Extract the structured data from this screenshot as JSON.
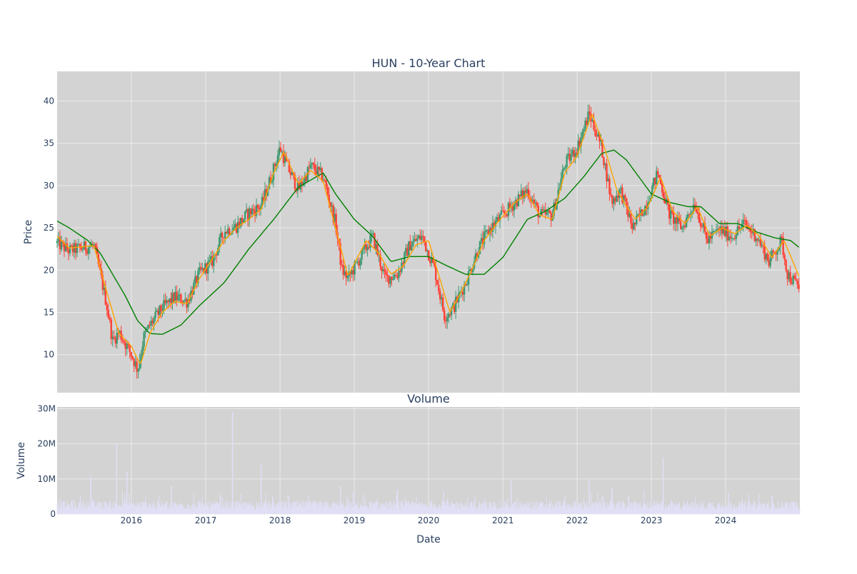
{
  "colors": {
    "plot_bg": "#d3d3d3",
    "grid": "#ebebeb",
    "up": "#3d9970",
    "down": "#ff4136",
    "ma_short": "#ffa500",
    "ma_long": "#008000",
    "volume": "#e0dff5",
    "text": "#2a3f5f"
  },
  "chart_data": [
    {
      "type": "candlestick",
      "title": "HUN - 10-Year Chart",
      "ylabel": "Price",
      "ylim": [
        5.5,
        43.5
      ],
      "yticks": [
        10,
        15,
        20,
        25,
        30,
        35,
        40
      ],
      "xlim": [
        "2015-01-01",
        "2024-12-31"
      ],
      "grid": true,
      "series": [
        {
          "kind": "ohlc",
          "points": [
            [
              "2015-01-01",
              23.2
            ],
            [
              "2015-03-01",
              22.3
            ],
            [
              "2015-05-01",
              22.6
            ],
            [
              "2015-07-01",
              22.9
            ],
            [
              "2015-08-01",
              19.5
            ],
            [
              "2015-09-01",
              16.0
            ],
            [
              "2015-10-01",
              11.6
            ],
            [
              "2015-11-01",
              12.7
            ],
            [
              "2016-01-01",
              10.0
            ],
            [
              "2016-02-01",
              8.2
            ],
            [
              "2016-03-01",
              12.0
            ],
            [
              "2016-04-01",
              13.5
            ],
            [
              "2016-06-01",
              15.5
            ],
            [
              "2016-08-01",
              16.8
            ],
            [
              "2016-10-01",
              16.3
            ],
            [
              "2016-12-01",
              19.6
            ],
            [
              "2017-02-01",
              21.0
            ],
            [
              "2017-04-01",
              24.6
            ],
            [
              "2017-06-01",
              25.2
            ],
            [
              "2017-08-01",
              26.8
            ],
            [
              "2017-10-01",
              27.6
            ],
            [
              "2017-12-01",
              32.0
            ],
            [
              "2018-01-01",
              34.5
            ],
            [
              "2018-02-01",
              32.5
            ],
            [
              "2018-04-01",
              29.5
            ],
            [
              "2018-06-01",
              32.3
            ],
            [
              "2018-08-01",
              31.0
            ],
            [
              "2018-10-01",
              25.5
            ],
            [
              "2018-11-01",
              20.0
            ],
            [
              "2018-12-01",
              19.0
            ],
            [
              "2019-02-01",
              21.5
            ],
            [
              "2019-04-01",
              24.0
            ],
            [
              "2019-06-01",
              19.0
            ],
            [
              "2019-08-01",
              19.5
            ],
            [
              "2019-10-01",
              23.0
            ],
            [
              "2019-12-01",
              24.0
            ],
            [
              "2020-02-01",
              20.0
            ],
            [
              "2020-03-20",
              14.5
            ],
            [
              "2020-05-01",
              15.5
            ],
            [
              "2020-07-01",
              18.5
            ],
            [
              "2020-09-01",
              22.5
            ],
            [
              "2020-11-01",
              25.0
            ],
            [
              "2021-01-01",
              26.5
            ],
            [
              "2021-03-01",
              28.0
            ],
            [
              "2021-05-01",
              29.5
            ],
            [
              "2021-07-01",
              26.5
            ],
            [
              "2021-09-01",
              26.5
            ],
            [
              "2021-11-01",
              32.5
            ],
            [
              "2022-01-01",
              34.5
            ],
            [
              "2022-03-01",
              38.5
            ],
            [
              "2022-05-01",
              34.5
            ],
            [
              "2022-06-20",
              28.0
            ],
            [
              "2022-08-01",
              29.5
            ],
            [
              "2022-10-01",
              25.0
            ],
            [
              "2022-12-01",
              27.5
            ],
            [
              "2023-02-01",
              31.5
            ],
            [
              "2023-04-01",
              26.5
            ],
            [
              "2023-06-01",
              25.0
            ],
            [
              "2023-08-01",
              28.0
            ],
            [
              "2023-10-01",
              23.5
            ],
            [
              "2023-12-01",
              24.8
            ],
            [
              "2024-02-01",
              24.0
            ],
            [
              "2024-04-01",
              25.5
            ],
            [
              "2024-06-01",
              24.0
            ],
            [
              "2024-08-01",
              21.0
            ],
            [
              "2024-10-01",
              23.5
            ],
            [
              "2024-11-01",
              19.5
            ],
            [
              "2024-12-31",
              17.8
            ]
          ]
        },
        {
          "kind": "line",
          "color_key": "ma_short",
          "points": [
            [
              "2015-01-01",
              24.0
            ],
            [
              "2015-03-01",
              22.6
            ],
            [
              "2015-07-01",
              22.9
            ],
            [
              "2015-09-01",
              17.5
            ],
            [
              "2015-11-01",
              12.5
            ],
            [
              "2016-01-01",
              11.0
            ],
            [
              "2016-02-15",
              8.8
            ],
            [
              "2016-04-01",
              12.5
            ],
            [
              "2016-06-01",
              15.0
            ],
            [
              "2016-08-01",
              16.3
            ],
            [
              "2016-10-01",
              16.0
            ],
            [
              "2016-12-01",
              19.0
            ],
            [
              "2017-04-01",
              23.5
            ],
            [
              "2017-06-01",
              25.0
            ],
            [
              "2017-08-01",
              26.0
            ],
            [
              "2017-10-01",
              27.2
            ],
            [
              "2017-12-01",
              31.5
            ],
            [
              "2018-01-20",
              34.0
            ],
            [
              "2018-04-01",
              30.2
            ],
            [
              "2018-06-01",
              31.8
            ],
            [
              "2018-08-01",
              30.5
            ],
            [
              "2018-10-01",
              25.0
            ],
            [
              "2018-12-01",
              19.3
            ],
            [
              "2019-03-01",
              23.5
            ],
            [
              "2019-05-01",
              22.0
            ],
            [
              "2019-07-01",
              19.5
            ],
            [
              "2019-09-01",
              20.5
            ],
            [
              "2019-11-01",
              23.0
            ],
            [
              "2020-01-01",
              23.5
            ],
            [
              "2020-04-15",
              15.0
            ],
            [
              "2020-06-01",
              17.0
            ],
            [
              "2020-08-01",
              20.0
            ],
            [
              "2020-10-01",
              23.5
            ],
            [
              "2020-12-01",
              25.5
            ],
            [
              "2021-03-01",
              28.0
            ],
            [
              "2021-05-01",
              29.0
            ],
            [
              "2021-07-01",
              26.5
            ],
            [
              "2021-09-01",
              26.0
            ],
            [
              "2021-11-01",
              31.5
            ],
            [
              "2022-01-01",
              33.5
            ],
            [
              "2022-03-15",
              38.5
            ],
            [
              "2022-05-15",
              34.5
            ],
            [
              "2022-07-15",
              29.5
            ],
            [
              "2022-09-01",
              27.5
            ],
            [
              "2022-10-15",
              26.0
            ],
            [
              "2022-12-15",
              27.5
            ],
            [
              "2023-02-15",
              31.0
            ],
            [
              "2023-04-15",
              27.0
            ],
            [
              "2023-06-15",
              25.5
            ],
            [
              "2023-08-15",
              27.5
            ],
            [
              "2023-10-15",
              24.0
            ],
            [
              "2023-12-15",
              25.0
            ],
            [
              "2024-02-15",
              24.3
            ],
            [
              "2024-04-15",
              25.3
            ],
            [
              "2024-06-15",
              24.0
            ],
            [
              "2024-08-15",
              21.5
            ],
            [
              "2024-10-15",
              23.5
            ],
            [
              "2024-12-31",
              19.0
            ]
          ]
        },
        {
          "kind": "line",
          "color_key": "ma_long",
          "points": [
            [
              "2015-01-01",
              25.8
            ],
            [
              "2015-03-01",
              25.0
            ],
            [
              "2015-06-01",
              23.5
            ],
            [
              "2015-08-01",
              22.0
            ],
            [
              "2015-10-01",
              19.5
            ],
            [
              "2015-12-01",
              17.0
            ],
            [
              "2016-02-01",
              14.0
            ],
            [
              "2016-04-01",
              12.5
            ],
            [
              "2016-06-01",
              12.4
            ],
            [
              "2016-09-01",
              13.5
            ],
            [
              "2016-12-01",
              15.8
            ],
            [
              "2017-04-01",
              18.5
            ],
            [
              "2017-08-01",
              22.5
            ],
            [
              "2017-12-01",
              26.0
            ],
            [
              "2018-04-01",
              29.8
            ],
            [
              "2018-08-01",
              31.5
            ],
            [
              "2018-10-01",
              29.0
            ],
            [
              "2019-01-01",
              26.0
            ],
            [
              "2019-04-01",
              24.0
            ],
            [
              "2019-07-01",
              21.0
            ],
            [
              "2019-10-01",
              21.6
            ],
            [
              "2020-01-01",
              21.6
            ],
            [
              "2020-04-01",
              20.5
            ],
            [
              "2020-07-01",
              19.5
            ],
            [
              "2020-10-01",
              19.5
            ],
            [
              "2021-01-01",
              21.5
            ],
            [
              "2021-05-01",
              26.0
            ],
            [
              "2021-08-01",
              27.0
            ],
            [
              "2021-11-01",
              28.5
            ],
            [
              "2022-02-01",
              31.0
            ],
            [
              "2022-05-01",
              33.8
            ],
            [
              "2022-07-01",
              34.2
            ],
            [
              "2022-09-01",
              33.0
            ],
            [
              "2022-11-01",
              31.0
            ],
            [
              "2023-01-01",
              29.0
            ],
            [
              "2023-04-01",
              28.0
            ],
            [
              "2023-07-01",
              27.5
            ],
            [
              "2023-09-01",
              27.5
            ],
            [
              "2023-12-01",
              25.5
            ],
            [
              "2024-03-01",
              25.5
            ],
            [
              "2024-06-01",
              24.5
            ],
            [
              "2024-09-01",
              23.8
            ],
            [
              "2024-11-15",
              23.5
            ],
            [
              "2024-12-31",
              22.6
            ]
          ]
        }
      ]
    },
    {
      "type": "bar",
      "title": "Volume",
      "ylabel": "Volume",
      "xlabel": "Date",
      "ylim": [
        0,
        30500000
      ],
      "yticks": [
        0,
        10000000,
        20000000,
        30000000
      ],
      "ytick_labels": [
        "0",
        "10M",
        "20M",
        "30M"
      ],
      "xticks": [
        "2016",
        "2017",
        "2018",
        "2019",
        "2020",
        "2021",
        "2022",
        "2023",
        "2024"
      ],
      "grid": true,
      "spikes": [
        [
          "2015-06-15",
          11000000
        ],
        [
          "2015-10-20",
          20000000
        ],
        [
          "2015-12-10",
          12000000
        ],
        [
          "2016-07-15",
          8000000
        ],
        [
          "2017-05-12",
          29000000
        ],
        [
          "2017-09-30",
          14000000
        ],
        [
          "2018-10-25",
          8000000
        ],
        [
          "2019-08-01",
          7000000
        ],
        [
          "2020-03-15",
          6500000
        ],
        [
          "2021-02-10",
          9500000
        ],
        [
          "2022-03-01",
          9500000
        ],
        [
          "2022-06-20",
          7500000
        ],
        [
          "2023-02-28",
          16000000
        ],
        [
          "2024-01-15",
          6000000
        ]
      ]
    }
  ]
}
